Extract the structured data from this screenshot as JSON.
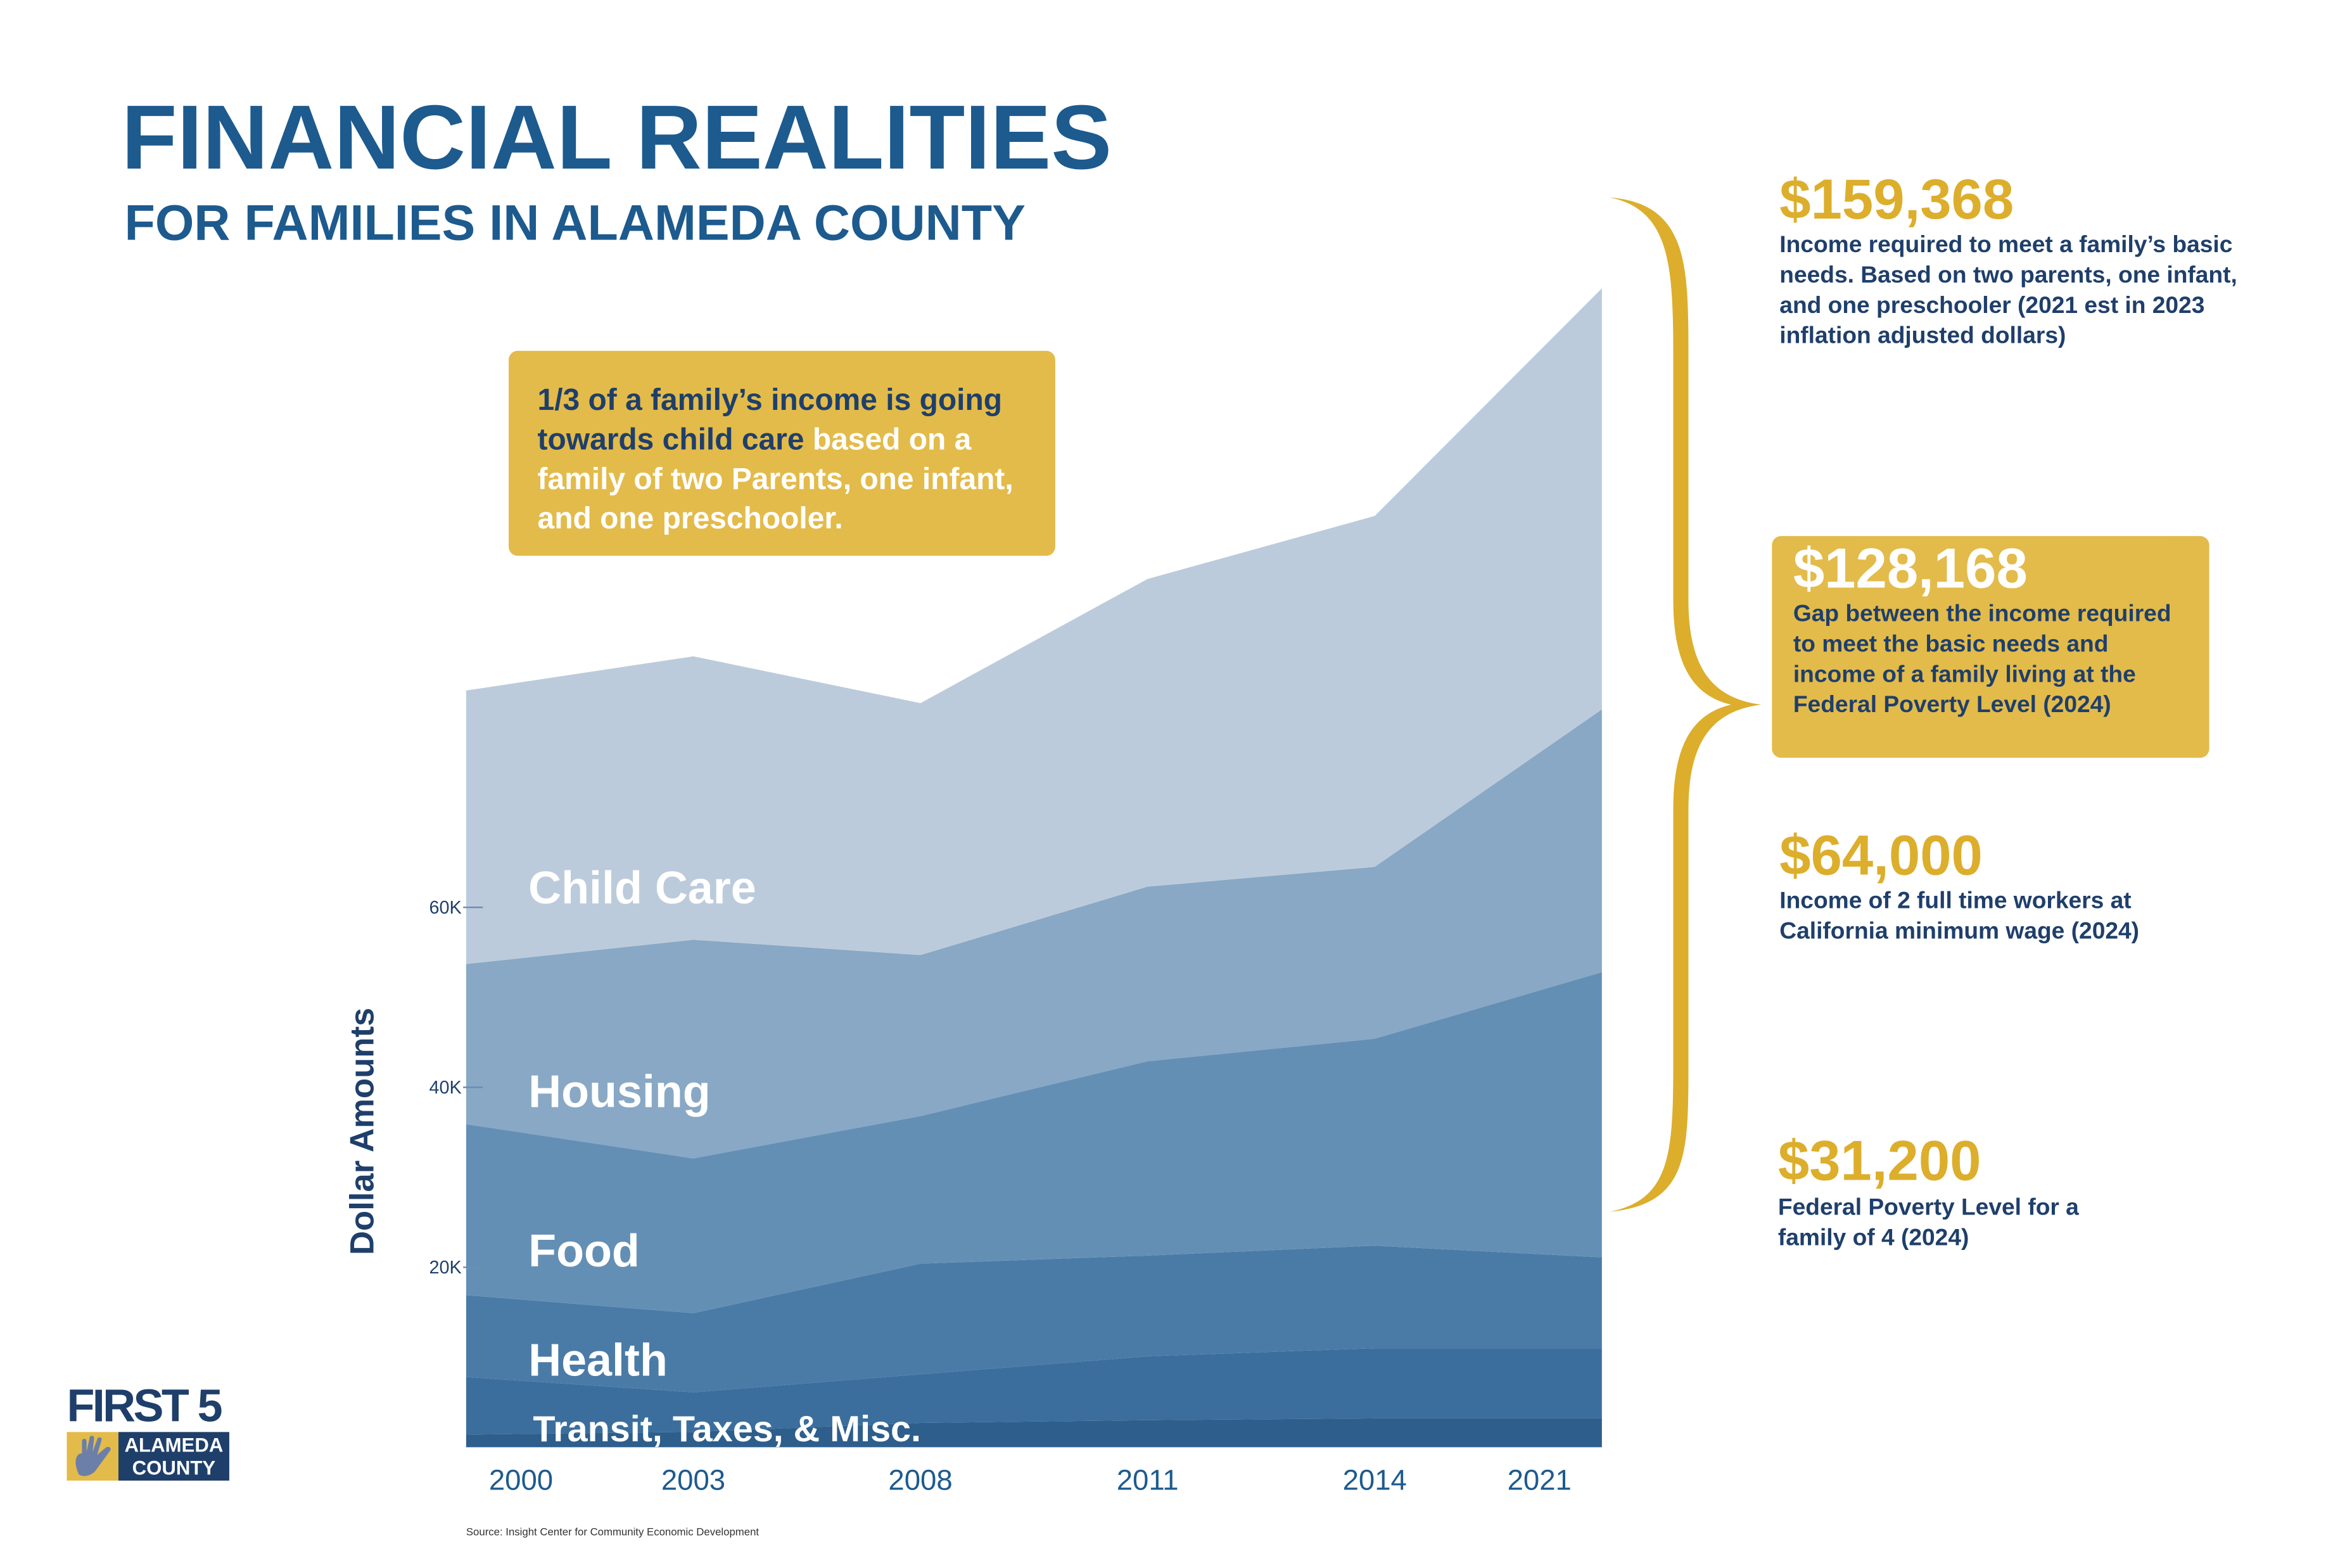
{
  "header": {
    "title": "FINANCIAL REALITIES",
    "subtitle": "FOR FAMILIES IN ALAMEDA COUNTY"
  },
  "quote": {
    "emphasis": "1/3 of a family’s income is going towards child care",
    "rest": "based on a family of two Parents, one infant, and one preschooler."
  },
  "highlights": [
    {
      "amount": "$159,368",
      "text": "Income required to meet a family’s basic needs. Based on two parents, one infant, and one preschooler (2021 est in 2023 inflation adjusted dollars)"
    },
    {
      "amount": "$128,168",
      "text": "Gap between the income required to meet the basic needs and income of a family living at the Federal Poverty Level (2024)"
    },
    {
      "amount": "$64,000",
      "text": "Income of 2 full time workers at California minimum wage (2024)"
    },
    {
      "amount": "$31,200",
      "text": "Federal Poverty Level for a family of 4 (2024)"
    }
  ],
  "chart_data": {
    "type": "stacked_area",
    "ylabel": "Dollar Amounts",
    "categories": [
      "2000",
      "2003",
      "2008",
      "2011",
      "2014",
      "2021"
    ],
    "series": [
      {
        "color": "#2d5e8c",
        "values": [
          1400,
          1700,
          2700,
          3000,
          3200,
          3200
        ]
      },
      {
        "name": "Transit, Taxes, & Misc.",
        "color": "#3b6e9d",
        "values": [
          6400,
          4400,
          5400,
          7100,
          7800,
          7800
        ]
      },
      {
        "name": "Health",
        "color": "#4a7ba7",
        "values": [
          9100,
          8800,
          12300,
          11200,
          11400,
          10100
        ]
      },
      {
        "name": "Food",
        "color": "#648fb5",
        "values": [
          19000,
          17200,
          16400,
          21600,
          23000,
          31700
        ]
      },
      {
        "name": "Housing",
        "color": "#88a8c5",
        "values": [
          17800,
          24300,
          17900,
          19400,
          19100,
          29200
        ]
      },
      {
        "name": "Child Care",
        "color": "#bccbdb",
        "values": [
          30400,
          31500,
          28000,
          34200,
          39000,
          46800
        ]
      }
    ],
    "ylim": [
      0,
      140000
    ],
    "yticks": [
      {
        "value": 20000,
        "label": "20K"
      },
      {
        "value": 40000,
        "label": "40K"
      },
      {
        "value": 60000,
        "label": "60K"
      }
    ],
    "grid": false,
    "source": "Source: Insight Center for Community Economic Development"
  },
  "logo": {
    "name": "FIRST 5",
    "county": [
      "ALAMEDA",
      "COUNTY"
    ]
  }
}
